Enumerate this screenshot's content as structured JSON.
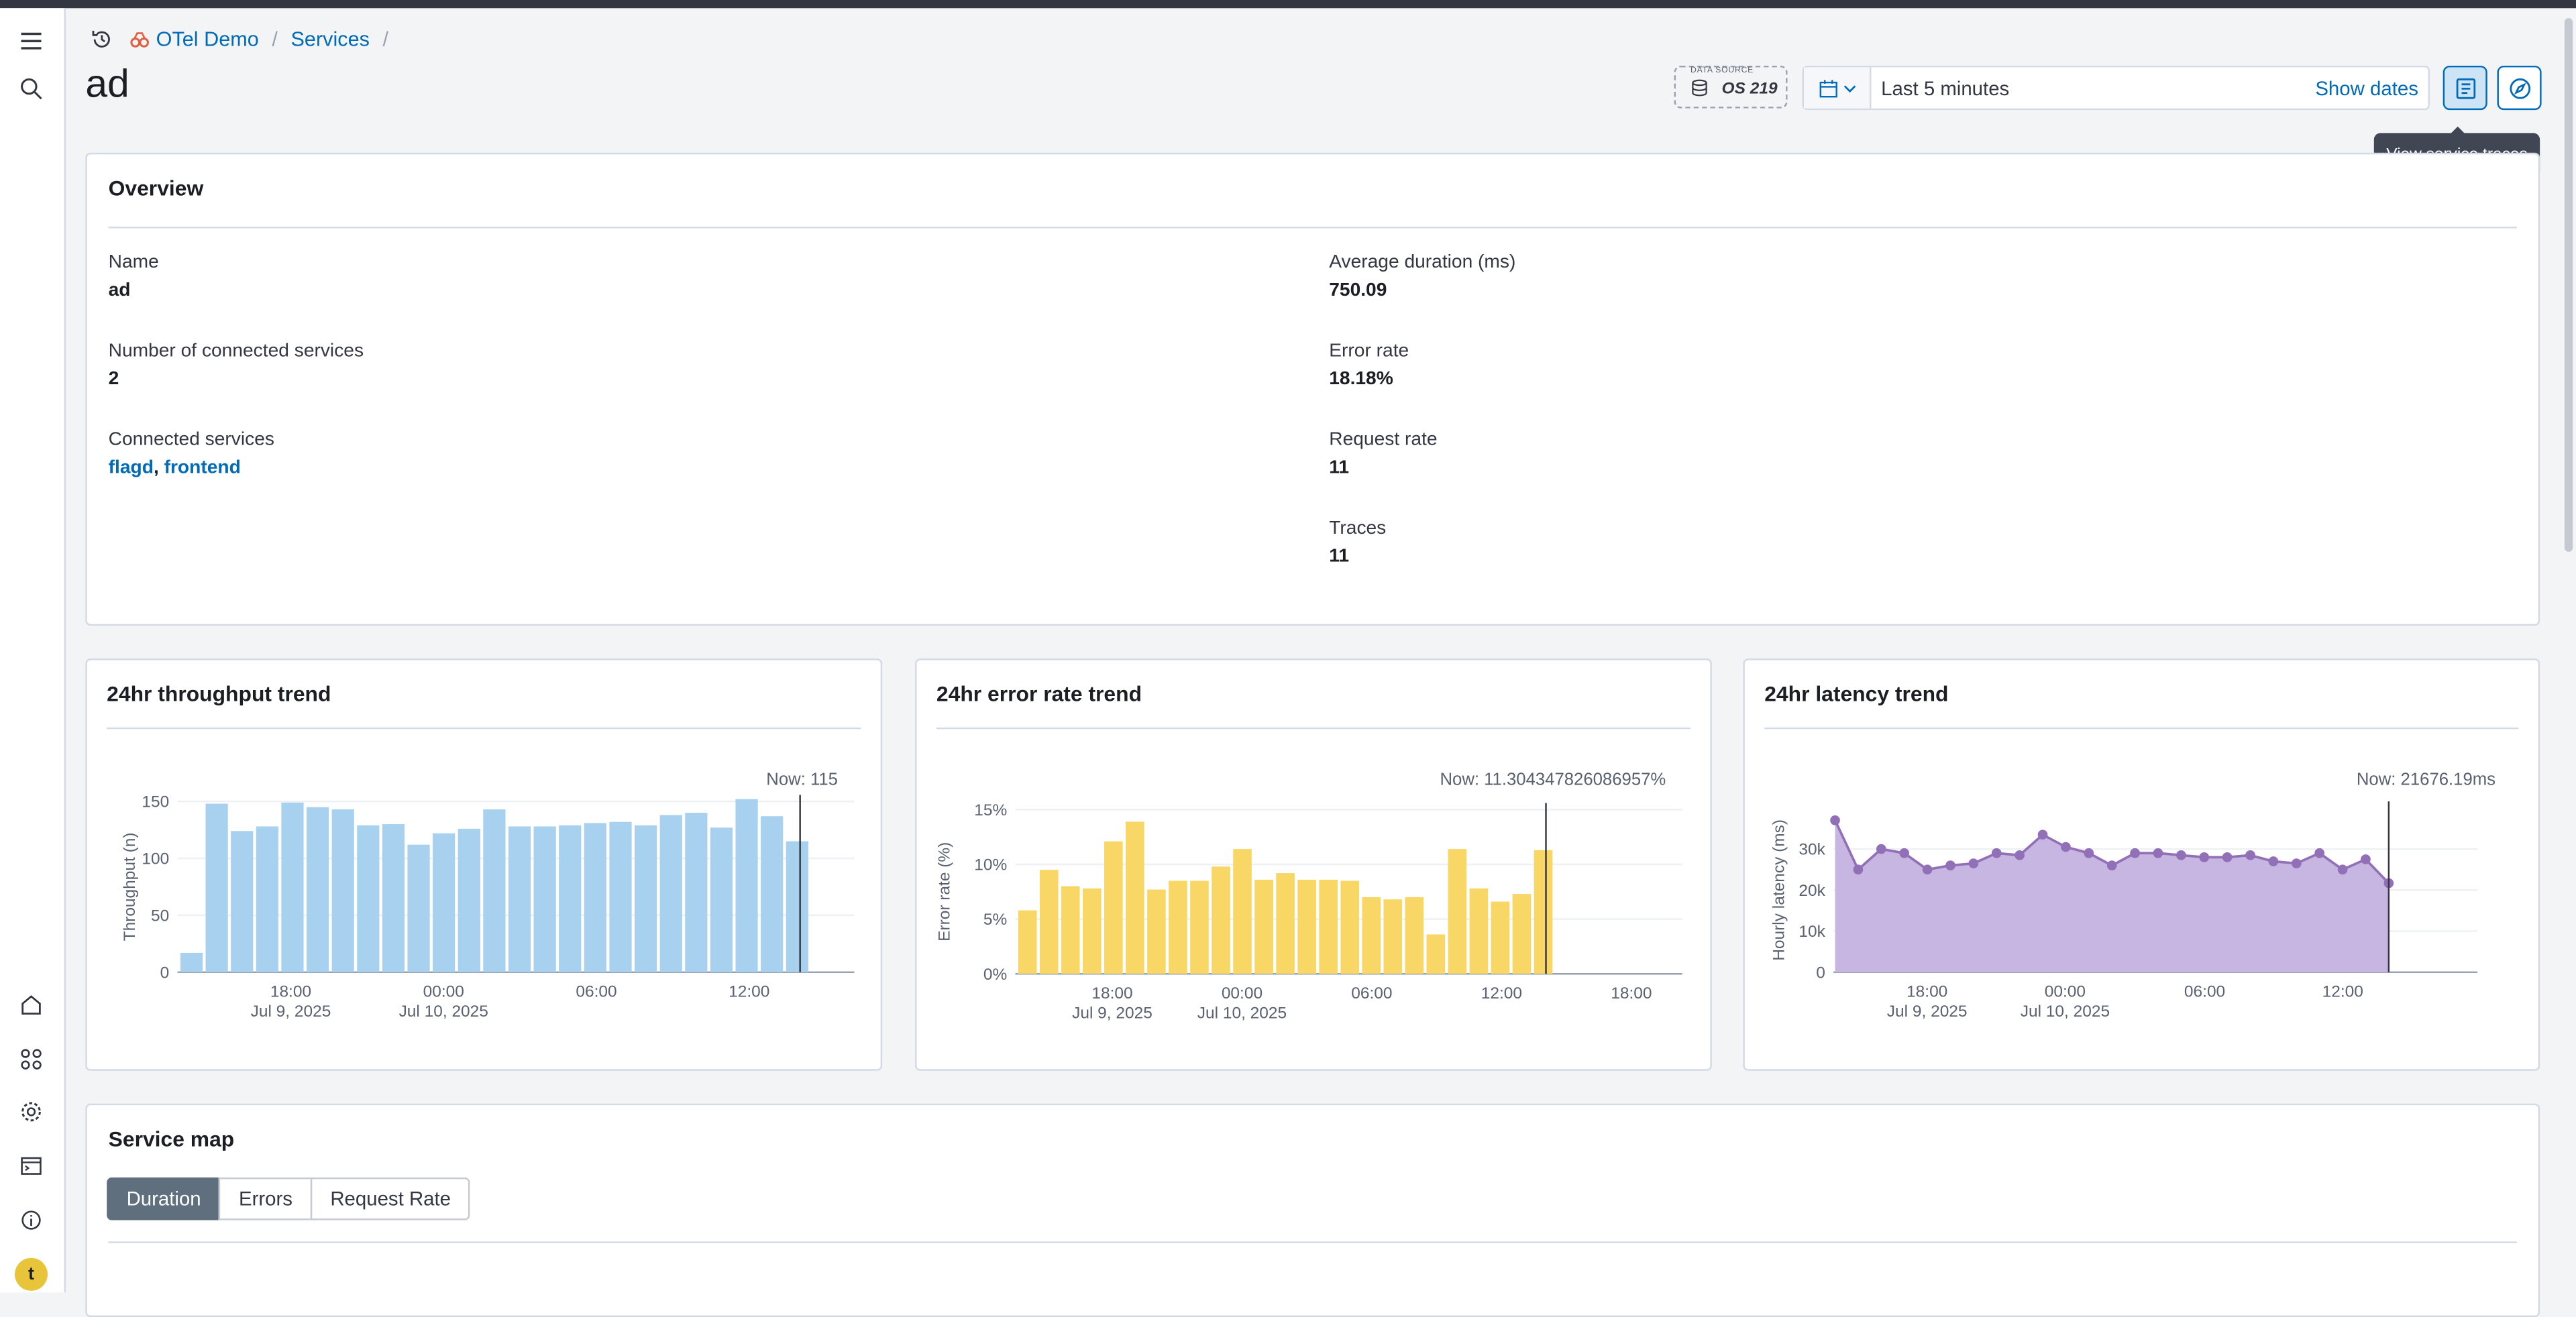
{
  "breadcrumbs": [
    "OTel Demo",
    "Services"
  ],
  "page_title": "ad",
  "data_source": {
    "tag": "DATA SOURCE",
    "value": "OS 219"
  },
  "time_picker": {
    "range": "Last 5 minutes",
    "show_dates": "Show dates"
  },
  "tooltip": "View service traces",
  "overview": {
    "title": "Overview",
    "name_label": "Name",
    "name_value": "ad",
    "connected_count_label": "Number of connected services",
    "connected_count_value": "2",
    "connected_label": "Connected services",
    "connected_services": [
      "flagd",
      "frontend"
    ],
    "connected_sep": ", ",
    "avg_duration_label": "Average duration (ms)",
    "avg_duration_value": "750.09",
    "error_rate_label": "Error rate",
    "error_rate_value": "18.18%",
    "request_rate_label": "Request rate",
    "request_rate_value": "11",
    "traces_label": "Traces",
    "traces_value": "11"
  },
  "charts": {
    "throughput": {
      "title": "24hr throughput trend"
    },
    "error": {
      "title": "24hr error rate trend"
    },
    "latency": {
      "title": "24hr latency trend"
    }
  },
  "chart_data": [
    {
      "type": "bar",
      "title": "24hr throughput trend",
      "ylabel": "Throughput (n)",
      "ylim": [
        0,
        150
      ],
      "yticks": [
        "0",
        "50",
        "100",
        "150"
      ],
      "xticks": [
        {
          "t": "18:00",
          "d": "Jul 9, 2025"
        },
        {
          "t": "00:00",
          "d": "Jul 10, 2025"
        },
        {
          "t": "06:00",
          "d": ""
        },
        {
          "t": "12:00",
          "d": ""
        }
      ],
      "now_label": "Now: 115",
      "color": "#a8d0ef",
      "values": [
        17,
        148,
        124,
        128,
        149,
        145,
        143,
        129,
        130,
        112,
        122,
        126,
        143,
        128,
        128,
        129,
        131,
        132,
        129,
        138,
        140,
        127,
        152,
        137,
        115
      ]
    },
    {
      "type": "bar",
      "title": "24hr error rate trend",
      "ylabel": "Error rate (%)",
      "ylim": [
        0,
        15
      ],
      "yticks": [
        "0%",
        "5%",
        "10%",
        "15%"
      ],
      "xticks": [
        {
          "t": "18:00",
          "d": "Jul 9, 2025"
        },
        {
          "t": "00:00",
          "d": "Jul 10, 2025"
        },
        {
          "t": "06:00",
          "d": ""
        },
        {
          "t": "12:00",
          "d": ""
        },
        {
          "t": "18:00",
          "d": ""
        }
      ],
      "now_label": "Now: 11.304347826086957%",
      "color": "#f8d766",
      "values": [
        5.8,
        9.5,
        8,
        7.8,
        12.1,
        13.9,
        7.7,
        8.5,
        8.5,
        9.8,
        11.4,
        8.6,
        9.2,
        8.6,
        8.6,
        8.5,
        7,
        6.8,
        7,
        3.6,
        11.4,
        7.8,
        6.6,
        7.3,
        11.3
      ]
    },
    {
      "type": "area",
      "title": "24hr latency trend",
      "ylabel": "Hourly latency (ms)",
      "ylim": [
        0,
        40000
      ],
      "yticks": [
        "0",
        "10k",
        "20k",
        "30k"
      ],
      "xticks": [
        {
          "t": "18:00",
          "d": "Jul 9, 2025"
        },
        {
          "t": "00:00",
          "d": "Jul 10, 2025"
        },
        {
          "t": "06:00",
          "d": ""
        },
        {
          "t": "12:00",
          "d": ""
        }
      ],
      "now_label": "Now: 21676.19ms",
      "color": "#9170b8",
      "values": [
        37000,
        25000,
        30000,
        29000,
        25000,
        26000,
        26500,
        29000,
        28500,
        33500,
        30500,
        29000,
        26000,
        29000,
        29000,
        28500,
        28000,
        28000,
        28500,
        27000,
        26500,
        29000,
        25000,
        27500,
        21676
      ]
    }
  ],
  "service_map": {
    "title": "Service map",
    "tabs": [
      "Duration",
      "Errors",
      "Request Rate"
    ]
  }
}
